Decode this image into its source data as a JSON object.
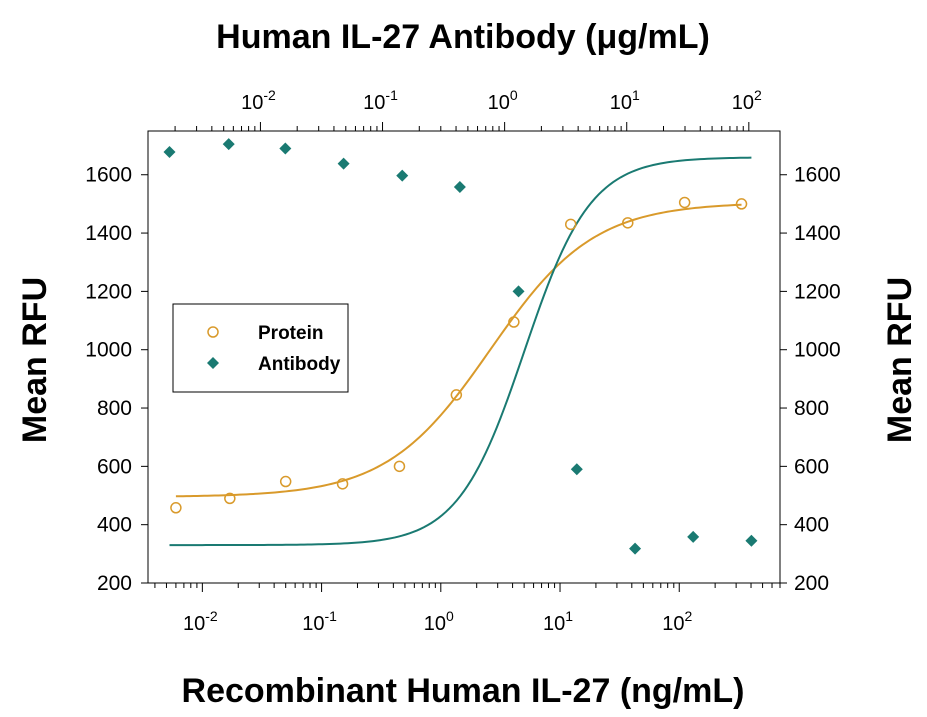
{
  "chart_data": {
    "type": "scatter",
    "title": "",
    "top_axis": {
      "label": "Human IL-27 Antibody (μg/mL)",
      "scale": "log",
      "tick_values": [
        0.01,
        0.1,
        1,
        10,
        100
      ],
      "tick_labels": [
        {
          "base": "10",
          "exp": "-2"
        },
        {
          "base": "10",
          "exp": "-1"
        },
        {
          "base": "10",
          "exp": "0"
        },
        {
          "base": "10",
          "exp": "1"
        },
        {
          "base": "10",
          "exp": "2"
        }
      ],
      "lim": [
        0.0012,
        180
      ]
    },
    "bottom_axis": {
      "label": "Recombinant Human IL-27 (ng/mL)",
      "scale": "log",
      "tick_values": [
        0.01,
        0.1,
        1,
        10,
        100
      ],
      "tick_labels": [
        {
          "base": "10",
          "exp": "-2"
        },
        {
          "base": "10",
          "exp": "-1"
        },
        {
          "base": "10",
          "exp": "0"
        },
        {
          "base": "10",
          "exp": "1"
        },
        {
          "base": "10",
          "exp": "2"
        }
      ],
      "lim": [
        0.0035,
        700
      ]
    },
    "left_axis": {
      "label": "Mean RFU",
      "tick_values": [
        200,
        400,
        600,
        800,
        1000,
        1200,
        1400,
        1600
      ],
      "tick_labels": [
        "200",
        "400",
        "600",
        "800",
        "1000",
        "1200",
        "1400",
        "1600"
      ],
      "lim": [
        200,
        1750
      ]
    },
    "right_axis": {
      "label": "Mean RFU",
      "tick_values": [
        200,
        400,
        600,
        800,
        1000,
        1200,
        1400,
        1600
      ],
      "tick_labels": [
        "200",
        "400",
        "600",
        "800",
        "1000",
        "1200",
        "1400",
        "1600"
      ],
      "lim": [
        200,
        1750
      ]
    },
    "legend": {
      "placement": "center-left",
      "entries": [
        {
          "label": "Protein",
          "marker": "open-circle",
          "color": "#d99a2b"
        },
        {
          "label": "Antibody",
          "marker": "diamond",
          "color": "#1a7a72"
        }
      ]
    },
    "series": [
      {
        "name": "Protein",
        "axis": "bottom",
        "color": "#d99a2b",
        "marker": "open-circle",
        "x": [
          0.006,
          0.017,
          0.05,
          0.15,
          0.45,
          1.35,
          4.1,
          12.3,
          37,
          111,
          333
        ],
        "y": [
          458,
          490,
          548,
          540,
          600,
          845,
          1095,
          1430,
          1435,
          1505,
          1500
        ],
        "fit": {
          "bottom": 495,
          "top": 1505,
          "ec50": 2.6,
          "hill": 1.0
        }
      },
      {
        "name": "Antibody",
        "axis": "top",
        "color": "#1a7a72",
        "marker": "diamond",
        "x": [
          0.0018,
          0.0055,
          0.016,
          0.048,
          0.145,
          0.43,
          1.3,
          3.9,
          11.7,
          35,
          105
        ],
        "y": [
          1678,
          1705,
          1690,
          1638,
          1597,
          1558,
          1200,
          590,
          318,
          358,
          345
        ],
        "fit": {
          "bottom": 330,
          "top": 1660,
          "ec50": 1.45,
          "hill": 1.6
        }
      }
    ]
  }
}
